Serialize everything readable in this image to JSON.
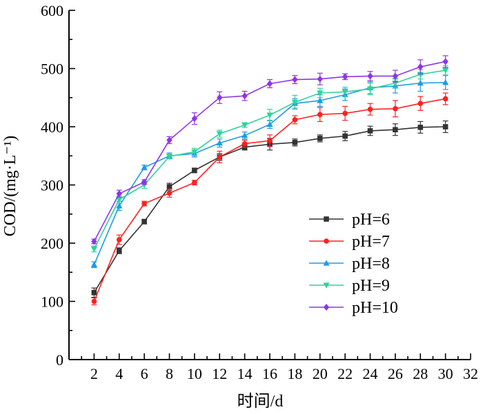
{
  "chart_data": {
    "type": "line",
    "title": "",
    "xlabel": "时间/d",
    "ylabel": "COD/(mg·L⁻¹)",
    "xlim": [
      0,
      32
    ],
    "ylim": [
      0,
      600
    ],
    "xticks": [
      2,
      4,
      6,
      8,
      10,
      12,
      14,
      16,
      18,
      20,
      22,
      24,
      26,
      28,
      30,
      32
    ],
    "yticks": [
      0,
      100,
      200,
      300,
      400,
      500,
      600
    ],
    "grid": false,
    "legend_position": "right",
    "x": [
      2,
      4,
      6,
      8,
      10,
      12,
      14,
      16,
      18,
      20,
      22,
      24,
      26,
      28,
      30
    ],
    "series": [
      {
        "name": "pH=6",
        "color": "#333333",
        "marker": "square",
        "values": [
          115,
          187,
          237,
          297,
          325,
          348,
          365,
          370,
          373,
          380,
          384,
          393,
          395,
          399,
          400
        ],
        "errors": [
          8,
          5,
          4,
          6,
          4,
          6,
          5,
          10,
          6,
          6,
          8,
          8,
          10,
          10,
          10
        ]
      },
      {
        "name": "pH=7",
        "color": "#ff2020",
        "marker": "circle",
        "values": [
          100,
          206,
          268,
          286,
          304,
          348,
          371,
          376,
          412,
          421,
          423,
          430,
          431,
          440,
          448
        ],
        "errors": [
          6,
          8,
          4,
          7,
          4,
          10,
          6,
          10,
          7,
          12,
          12,
          10,
          14,
          12,
          10
        ]
      },
      {
        "name": "pH=8",
        "color": "#1e9be6",
        "marker": "triangle-up",
        "values": [
          163,
          264,
          330,
          350,
          354,
          372,
          385,
          404,
          440,
          445,
          455,
          467,
          470,
          475,
          476
        ],
        "errors": [
          5,
          8,
          4,
          5,
          6,
          7,
          6,
          7,
          8,
          10,
          10,
          10,
          12,
          14,
          12
        ]
      },
      {
        "name": "pH=9",
        "color": "#2fd39a",
        "marker": "triangle-down",
        "values": [
          190,
          275,
          300,
          349,
          357,
          388,
          403,
          420,
          442,
          458,
          460,
          465,
          475,
          490,
          497
        ],
        "errors": [
          5,
          6,
          6,
          4,
          6,
          6,
          4,
          10,
          12,
          8,
          8,
          10,
          8,
          8,
          8
        ]
      },
      {
        "name": "pH=10",
        "color": "#8f33e8",
        "marker": "diamond",
        "values": [
          203,
          285,
          305,
          377,
          414,
          450,
          453,
          474,
          481,
          482,
          486,
          487,
          487,
          503,
          512
        ],
        "errors": [
          4,
          6,
          4,
          6,
          10,
          10,
          8,
          7,
          7,
          10,
          5,
          8,
          10,
          12,
          10
        ]
      }
    ]
  }
}
